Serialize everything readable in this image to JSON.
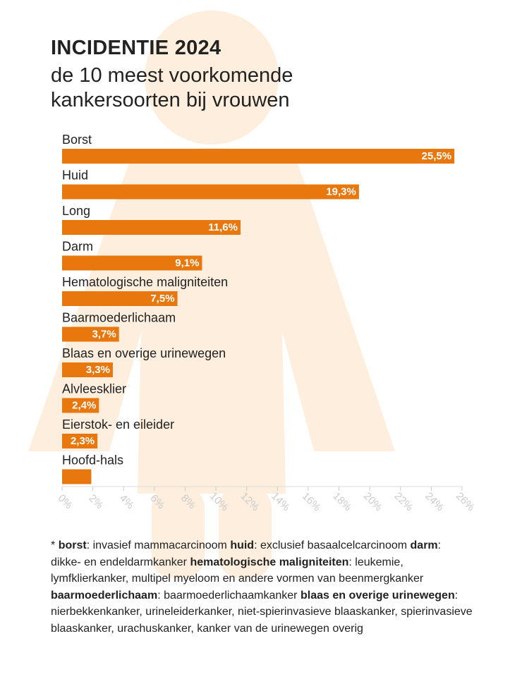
{
  "chart_data": {
    "type": "bar",
    "orientation": "horizontal",
    "title": "INCIDENTIE 2024",
    "subtitle": "de 10 meest voorkomende kankersoorten bij vrouwen",
    "categories": [
      "Borst",
      "Huid",
      "Long",
      "Darm",
      "Hematologische maligniteiten",
      "Baarmoederlichaam",
      "Blaas en overige urinewegen",
      "Alvleesklier",
      "Eierstok- en eileider",
      "Hoofd-hals"
    ],
    "values": [
      25.5,
      19.3,
      11.6,
      9.1,
      7.5,
      3.7,
      3.3,
      2.4,
      2.3,
      1.9
    ],
    "value_labels": [
      "25,5%",
      "19,3%",
      "11,6%",
      "9,1%",
      "7,5%",
      "3,7%",
      "3,3%",
      "2,4%",
      "2,3%",
      null
    ],
    "color": "#e8780e",
    "xlim": [
      0,
      26
    ],
    "xticks": [
      {
        "value": 0,
        "label": "0%"
      },
      {
        "value": 2,
        "label": "2%"
      },
      {
        "value": 4,
        "label": "4%"
      },
      {
        "value": 6,
        "label": "6%"
      },
      {
        "value": 8,
        "label": "8%"
      },
      {
        "value": 10,
        "label": "10%"
      },
      {
        "value": 12,
        "label": "12%"
      },
      {
        "value": 14,
        "label": "14%"
      },
      {
        "value": 16,
        "label": "16%"
      },
      {
        "value": 18,
        "label": "18%"
      },
      {
        "value": 20,
        "label": "20%"
      },
      {
        "value": 22,
        "label": "22%"
      },
      {
        "value": 24,
        "label": "24%"
      },
      {
        "value": 26,
        "label": "26%"
      }
    ],
    "footnote": {
      "prefix": "*",
      "items": [
        {
          "term": "borst",
          "text": ": invasief mammacarcinoom"
        },
        {
          "term": "huid",
          "text": ": exclusief basaalcelcarcinoom"
        },
        {
          "term": "darm",
          "text": ": dikke- en endeldarmkanker"
        },
        {
          "term": "hematologische maligniteiten",
          "text": ": leukemie, lymfklierkanker, multipel myeloom en andere vormen van beenmergkanker"
        },
        {
          "term": "baarmoederlichaam",
          "text": ": baarmoederlichaamkanker"
        },
        {
          "term": "blaas en overige urinewegen",
          "text": ": nierbekkenkanker, urineleiderkanker, niet-spierinvasieve blaaskanker, spierinvasieve blaaskanker, urachuskanker, kanker van de urinewegen overig"
        }
      ]
    }
  }
}
